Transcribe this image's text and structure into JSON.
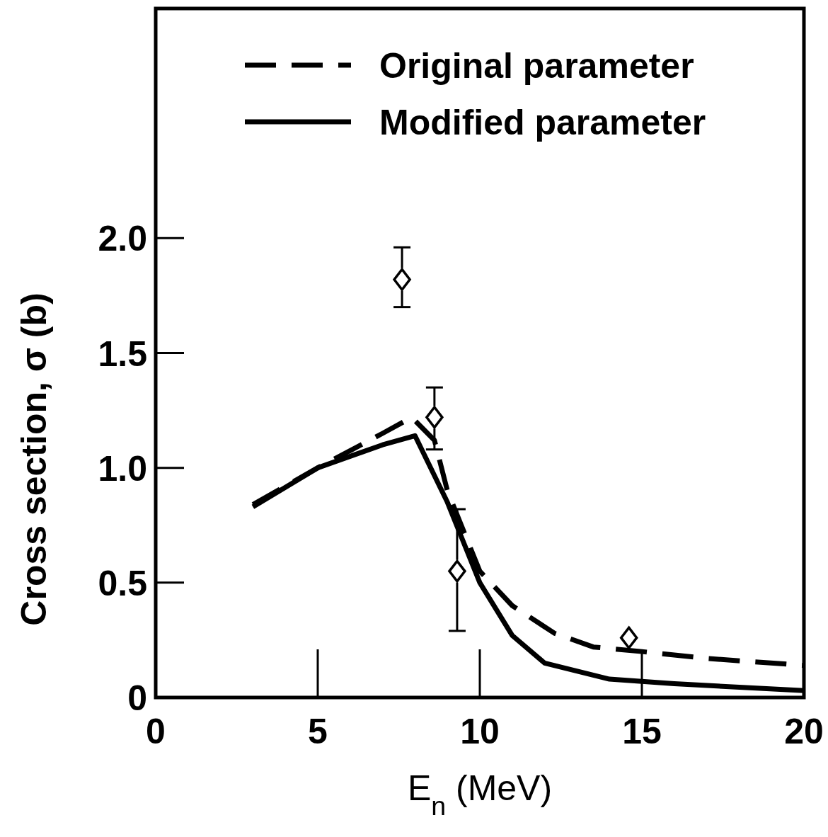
{
  "chart_data": {
    "type": "line",
    "xlabel": "E$_{n}$ (MeV)",
    "ylabel": "Cross section, σ (b)",
    "xlim": [
      0,
      20
    ],
    "ylim": [
      0,
      3.0
    ],
    "xticks": [
      0,
      5,
      10,
      15,
      20
    ],
    "yticks": [
      0,
      {
        "value": 0.5,
        "label": "0.5"
      },
      {
        "value": 1,
        "label": "1.0"
      },
      {
        "value": 1.5,
        "label": "1.5"
      },
      {
        "value": 2,
        "label": "2.0"
      }
    ],
    "grid": false,
    "legend": "top right",
    "series": [
      {
        "name": "Original parameter",
        "color": "#000000",
        "line_style": "dashed",
        "x": [
          3,
          5,
          7,
          7.9,
          8.6,
          9,
          10,
          11,
          12.3,
          13.5,
          15,
          17,
          20
        ],
        "values": [
          0.84,
          1.0,
          1.15,
          1.22,
          1.12,
          0.9,
          0.55,
          0.4,
          0.28,
          0.22,
          0.2,
          0.17,
          0.14
        ]
      },
      {
        "name": "Modified parameter",
        "color": "#000000",
        "line_style": "solid",
        "x": [
          3,
          5,
          7,
          8,
          9,
          10,
          11,
          12,
          14,
          16,
          20
        ],
        "values": [
          0.83,
          1.0,
          1.1,
          1.14,
          0.85,
          0.5,
          0.27,
          0.15,
          0.08,
          0.06,
          0.03
        ]
      },
      {
        "type": "scatter",
        "color": "#000000",
        "marker": "diamond",
        "x": [
          7.6,
          8.6,
          9.3,
          14.6
        ],
        "values": [
          1.82,
          1.22,
          0.55,
          0.26
        ],
        "errors": [
          [
            1.7,
            1.96
          ],
          [
            1.08,
            1.35
          ],
          [
            0.29,
            0.82
          ],
          null
        ]
      }
    ]
  }
}
